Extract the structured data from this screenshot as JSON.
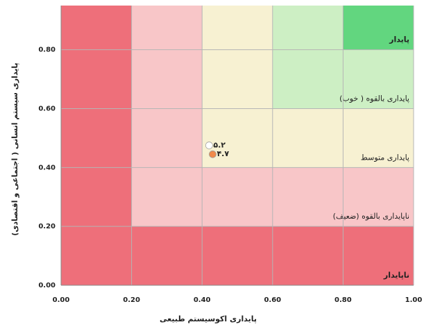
{
  "chart_data": {
    "type": "scatter",
    "x_label": "پایداری اکوسیستم طبیعی",
    "y_label": "پایداری سیستم انسانی ( اجتماعی و اقتصادی)",
    "xlim": [
      0,
      1
    ],
    "ylim": [
      0,
      0.95
    ],
    "xticks": [
      {
        "value": 0,
        "label": "0.00"
      },
      {
        "value": 0.2,
        "label": "0.20"
      },
      {
        "value": 0.4,
        "label": "0.40"
      },
      {
        "value": 0.6,
        "label": "0.60"
      },
      {
        "value": 0.8,
        "label": "0.80"
      },
      {
        "value": 1,
        "label": "1.00"
      }
    ],
    "yticks": [
      {
        "value": 0,
        "label": "0.00"
      },
      {
        "value": 0.2,
        "label": "0.20"
      },
      {
        "value": 0.4,
        "label": "0.40"
      },
      {
        "value": 0.6,
        "label": "0.60"
      },
      {
        "value": 0.8,
        "label": "0.80"
      }
    ],
    "grid": true,
    "zones": [
      {
        "label": "ناپایدار",
        "color": "#ee6f7a"
      },
      {
        "label": "ناپایداری بالقوه (ضعیف)",
        "color": "#f8c6c8"
      },
      {
        "label": "پایداری متوسط",
        "color": "#f7f1d2"
      },
      {
        "label": "پایداری بالقوه ( خوب)",
        "color": "#cdefc4"
      },
      {
        "label": "پایدار",
        "color": "#62d67f"
      }
    ],
    "series": [
      {
        "x": [
          0.42
        ],
        "values": [
          0.475
        ],
        "value_labels": [
          "۵.۲"
        ],
        "color": "#ffffff"
      },
      {
        "x": [
          0.43
        ],
        "values": [
          0.445
        ],
        "value_labels": [
          "۴.۷"
        ],
        "color": "#f08a4b"
      }
    ]
  }
}
